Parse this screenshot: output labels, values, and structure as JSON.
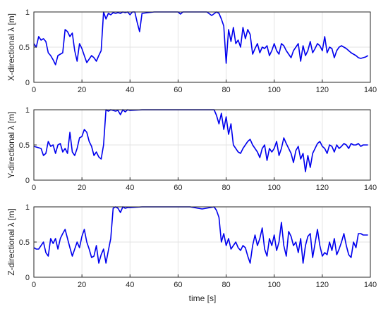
{
  "figure": {
    "xlabel": "time [s]"
  },
  "chart_data": [
    {
      "type": "line",
      "ylabel": "X-directional λ [m]",
      "xlim": [
        0,
        140
      ],
      "ylim": [
        0,
        1
      ],
      "xticks": [
        0,
        20,
        40,
        60,
        80,
        100,
        120,
        140
      ],
      "yticks": [
        0,
        0.5,
        1
      ],
      "grid": true,
      "series": [
        {
          "color": "#0000ee",
          "x": [
            0,
            1,
            2,
            3,
            4,
            5,
            6,
            7,
            8,
            9,
            10,
            11,
            12,
            13,
            14,
            15,
            16,
            17,
            18,
            19,
            20,
            21,
            22,
            23,
            24,
            25,
            26,
            27,
            28,
            29,
            30,
            31,
            32,
            33,
            34,
            35,
            36,
            37,
            38,
            39,
            40,
            41,
            42,
            43,
            44,
            45,
            50,
            55,
            60,
            61,
            62,
            65,
            70,
            72,
            74,
            76,
            77,
            78,
            79,
            80,
            81,
            82,
            83,
            84,
            85,
            86,
            87,
            88,
            89,
            90,
            91,
            92,
            93,
            94,
            95,
            96,
            97,
            98,
            99,
            100,
            101,
            102,
            103,
            104,
            105,
            106,
            107,
            108,
            109,
            110,
            111,
            112,
            113,
            114,
            115,
            116,
            117,
            118,
            119,
            120,
            121,
            122,
            123,
            124,
            125,
            126,
            127,
            128,
            129,
            130,
            131,
            132,
            133,
            134,
            135,
            136,
            137,
            138,
            139
          ],
          "values": [
            0.55,
            0.5,
            0.65,
            0.6,
            0.62,
            0.58,
            0.42,
            0.38,
            0.32,
            0.25,
            0.38,
            0.4,
            0.42,
            0.75,
            0.72,
            0.65,
            0.7,
            0.45,
            0.3,
            0.55,
            0.48,
            0.38,
            0.28,
            0.33,
            0.38,
            0.35,
            0.3,
            0.38,
            0.45,
            1.0,
            0.9,
            0.98,
            0.96,
            0.99,
            0.98,
            0.99,
            0.98,
            1.0,
            0.99,
            1.0,
            0.96,
            1.0,
            1.0,
            0.85,
            0.72,
            0.98,
            1.0,
            1.0,
            1.0,
            0.97,
            1.0,
            1.0,
            1.0,
            1.0,
            0.95,
            1.0,
            0.98,
            0.9,
            0.8,
            0.27,
            0.75,
            0.58,
            0.78,
            0.55,
            0.6,
            0.5,
            0.78,
            0.62,
            0.75,
            0.68,
            0.4,
            0.48,
            0.55,
            0.42,
            0.5,
            0.48,
            0.52,
            0.38,
            0.45,
            0.55,
            0.45,
            0.4,
            0.55,
            0.52,
            0.45,
            0.4,
            0.35,
            0.45,
            0.5,
            0.55,
            0.3,
            0.52,
            0.38,
            0.45,
            0.58,
            0.42,
            0.48,
            0.55,
            0.52,
            0.45,
            0.65,
            0.42,
            0.5,
            0.48,
            0.35,
            0.45,
            0.5,
            0.52,
            0.5,
            0.48,
            0.45,
            0.42,
            0.4,
            0.38,
            0.35,
            0.34,
            0.35,
            0.36,
            0.38
          ]
        }
      ]
    },
    {
      "type": "line",
      "ylabel": "Y-directional λ [m]",
      "xlim": [
        0,
        140
      ],
      "ylim": [
        0,
        1
      ],
      "xticks": [
        0,
        20,
        40,
        60,
        80,
        100,
        120,
        140
      ],
      "yticks": [
        0,
        0.5,
        1
      ],
      "grid": true,
      "series": [
        {
          "color": "#0000ee",
          "x": [
            0,
            1,
            2,
            3,
            4,
            5,
            6,
            7,
            8,
            9,
            10,
            11,
            12,
            13,
            14,
            15,
            16,
            17,
            18,
            19,
            20,
            21,
            22,
            23,
            24,
            25,
            26,
            27,
            28,
            29,
            30,
            31,
            32,
            33,
            34,
            35,
            36,
            37,
            38,
            39,
            40,
            45,
            50,
            55,
            60,
            65,
            70,
            75,
            76,
            77,
            78,
            79,
            80,
            81,
            82,
            83,
            84,
            85,
            86,
            87,
            88,
            89,
            90,
            91,
            92,
            93,
            94,
            95,
            96,
            97,
            98,
            99,
            100,
            101,
            102,
            103,
            104,
            105,
            106,
            107,
            108,
            109,
            110,
            111,
            112,
            113,
            114,
            115,
            116,
            117,
            118,
            119,
            120,
            121,
            122,
            123,
            124,
            125,
            126,
            127,
            128,
            129,
            130,
            131,
            132,
            133,
            134,
            135,
            136,
            137,
            138,
            139
          ],
          "values": [
            0.48,
            0.47,
            0.46,
            0.45,
            0.35,
            0.38,
            0.55,
            0.48,
            0.5,
            0.38,
            0.5,
            0.52,
            0.4,
            0.45,
            0.38,
            0.68,
            0.4,
            0.35,
            0.45,
            0.6,
            0.62,
            0.72,
            0.68,
            0.55,
            0.48,
            0.35,
            0.4,
            0.33,
            0.3,
            0.5,
            1.0,
            0.98,
            1.0,
            0.99,
            0.98,
            0.99,
            0.93,
            1.0,
            0.97,
            1.0,
            0.99,
            1.0,
            1.0,
            1.0,
            1.0,
            1.0,
            1.0,
            1.0,
            0.92,
            0.8,
            0.95,
            0.72,
            0.9,
            0.65,
            0.8,
            0.5,
            0.45,
            0.4,
            0.38,
            0.45,
            0.5,
            0.55,
            0.58,
            0.5,
            0.45,
            0.4,
            0.32,
            0.45,
            0.5,
            0.28,
            0.45,
            0.4,
            0.45,
            0.55,
            0.35,
            0.45,
            0.6,
            0.52,
            0.45,
            0.38,
            0.25,
            0.42,
            0.48,
            0.3,
            0.38,
            0.12,
            0.35,
            0.18,
            0.38,
            0.45,
            0.52,
            0.55,
            0.48,
            0.45,
            0.38,
            0.5,
            0.48,
            0.4,
            0.5,
            0.45,
            0.48,
            0.52,
            0.5,
            0.45,
            0.52,
            0.5,
            0.5,
            0.52,
            0.48,
            0.5,
            0.5,
            0.5
          ]
        }
      ]
    },
    {
      "type": "line",
      "ylabel": "Z-directional λ [m]",
      "xlim": [
        0,
        140
      ],
      "ylim": [
        0,
        1
      ],
      "xticks": [
        0,
        20,
        40,
        60,
        80,
        100,
        120,
        140
      ],
      "yticks": [
        0,
        0.5,
        1
      ],
      "grid": true,
      "series": [
        {
          "color": "#0000ee",
          "x": [
            0,
            1,
            2,
            3,
            4,
            5,
            6,
            7,
            8,
            9,
            10,
            11,
            12,
            13,
            14,
            15,
            16,
            17,
            18,
            19,
            20,
            21,
            22,
            23,
            24,
            25,
            26,
            27,
            28,
            29,
            30,
            31,
            32,
            33,
            34,
            35,
            36,
            37,
            38,
            39,
            40,
            45,
            50,
            55,
            60,
            65,
            70,
            75,
            76,
            77,
            78,
            79,
            80,
            81,
            82,
            83,
            84,
            85,
            86,
            87,
            88,
            89,
            90,
            91,
            92,
            93,
            94,
            95,
            96,
            97,
            98,
            99,
            100,
            101,
            102,
            103,
            104,
            105,
            106,
            107,
            108,
            109,
            110,
            111,
            112,
            113,
            114,
            115,
            116,
            117,
            118,
            119,
            120,
            121,
            122,
            123,
            124,
            125,
            126,
            127,
            128,
            129,
            130,
            131,
            132,
            133,
            134,
            135,
            136,
            137,
            138,
            139
          ],
          "values": [
            0.42,
            0.4,
            0.4,
            0.45,
            0.5,
            0.35,
            0.3,
            0.55,
            0.48,
            0.55,
            0.4,
            0.55,
            0.62,
            0.68,
            0.55,
            0.42,
            0.3,
            0.4,
            0.5,
            0.42,
            0.58,
            0.68,
            0.5,
            0.4,
            0.28,
            0.3,
            0.45,
            0.2,
            0.32,
            0.4,
            0.2,
            0.38,
            0.55,
            0.98,
            1.0,
            0.98,
            0.92,
            1.0,
            0.98,
            0.99,
            0.99,
            1.0,
            1.0,
            1.0,
            1.0,
            1.0,
            0.97,
            1.0,
            0.95,
            0.85,
            0.5,
            0.62,
            0.45,
            0.55,
            0.4,
            0.45,
            0.5,
            0.42,
            0.38,
            0.45,
            0.42,
            0.3,
            0.2,
            0.45,
            0.6,
            0.45,
            0.55,
            0.7,
            0.4,
            0.3,
            0.55,
            0.45,
            0.6,
            0.38,
            0.5,
            0.78,
            0.45,
            0.3,
            0.65,
            0.58,
            0.45,
            0.5,
            0.35,
            0.55,
            0.2,
            0.45,
            0.58,
            0.62,
            0.28,
            0.48,
            0.68,
            0.45,
            0.3,
            0.35,
            0.32,
            0.5,
            0.38,
            0.55,
            0.32,
            0.4,
            0.5,
            0.62,
            0.45,
            0.32,
            0.28,
            0.5,
            0.42,
            0.62,
            0.62,
            0.6,
            0.6,
            0.6
          ]
        }
      ]
    }
  ]
}
